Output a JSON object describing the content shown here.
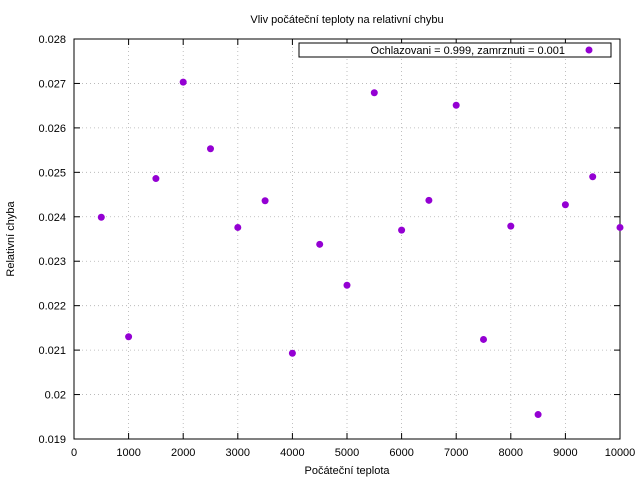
{
  "chart_data": {
    "type": "scatter",
    "title": "Vliv počáteční teploty na relativní chybu",
    "xlabel": "Počáteční teplota",
    "ylabel": "Relativní chyba",
    "xlim": [
      0,
      10000
    ],
    "ylim": [
      0.019,
      0.028
    ],
    "xticks": [
      0,
      1000,
      2000,
      3000,
      4000,
      5000,
      6000,
      7000,
      8000,
      9000,
      10000
    ],
    "yticks": [
      0.019,
      0.02,
      0.021,
      0.022,
      0.023,
      0.024,
      0.025,
      0.026,
      0.027,
      0.028
    ],
    "ytick_labels": [
      "0.019",
      "0.02",
      "0.021",
      "0.022",
      "0.023",
      "0.024",
      "0.025",
      "0.026",
      "0.027",
      "0.028"
    ],
    "grid": true,
    "legend_position": "top-right",
    "series": [
      {
        "name": "Ochlazovani = 0.999, zamrznuti = 0.001",
        "color": "#9400d3",
        "x": [
          500,
          1000,
          1500,
          2000,
          2500,
          3000,
          3500,
          4000,
          4500,
          5000,
          5500,
          6000,
          6500,
          7000,
          7500,
          8000,
          8500,
          9000,
          9500,
          10000
        ],
        "y": [
          0.02399,
          0.0213,
          0.02486,
          0.02703,
          0.02553,
          0.02376,
          0.02436,
          0.02093,
          0.02338,
          0.02246,
          0.02679,
          0.0237,
          0.02437,
          0.02651,
          0.02124,
          0.02379,
          0.01955,
          0.02427,
          0.0249,
          0.02376
        ]
      }
    ]
  }
}
